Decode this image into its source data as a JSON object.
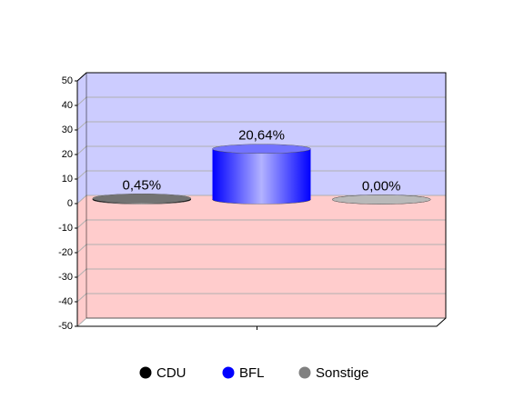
{
  "chart_data": {
    "type": "bar",
    "categories": [
      "CDU",
      "BFL",
      "Sonstige"
    ],
    "values": [
      0.45,
      20.64,
      0.0
    ],
    "value_labels": [
      "0,45%",
      "20,64%",
      "0,00%"
    ],
    "colors": [
      "#000000",
      "#0000ff",
      "#808080"
    ],
    "ylim": [
      -50,
      50
    ],
    "yticks": [
      -50,
      -40,
      -30,
      -20,
      -10,
      0,
      10,
      20,
      30,
      40,
      50
    ],
    "grid": true,
    "legend": "bottom"
  }
}
